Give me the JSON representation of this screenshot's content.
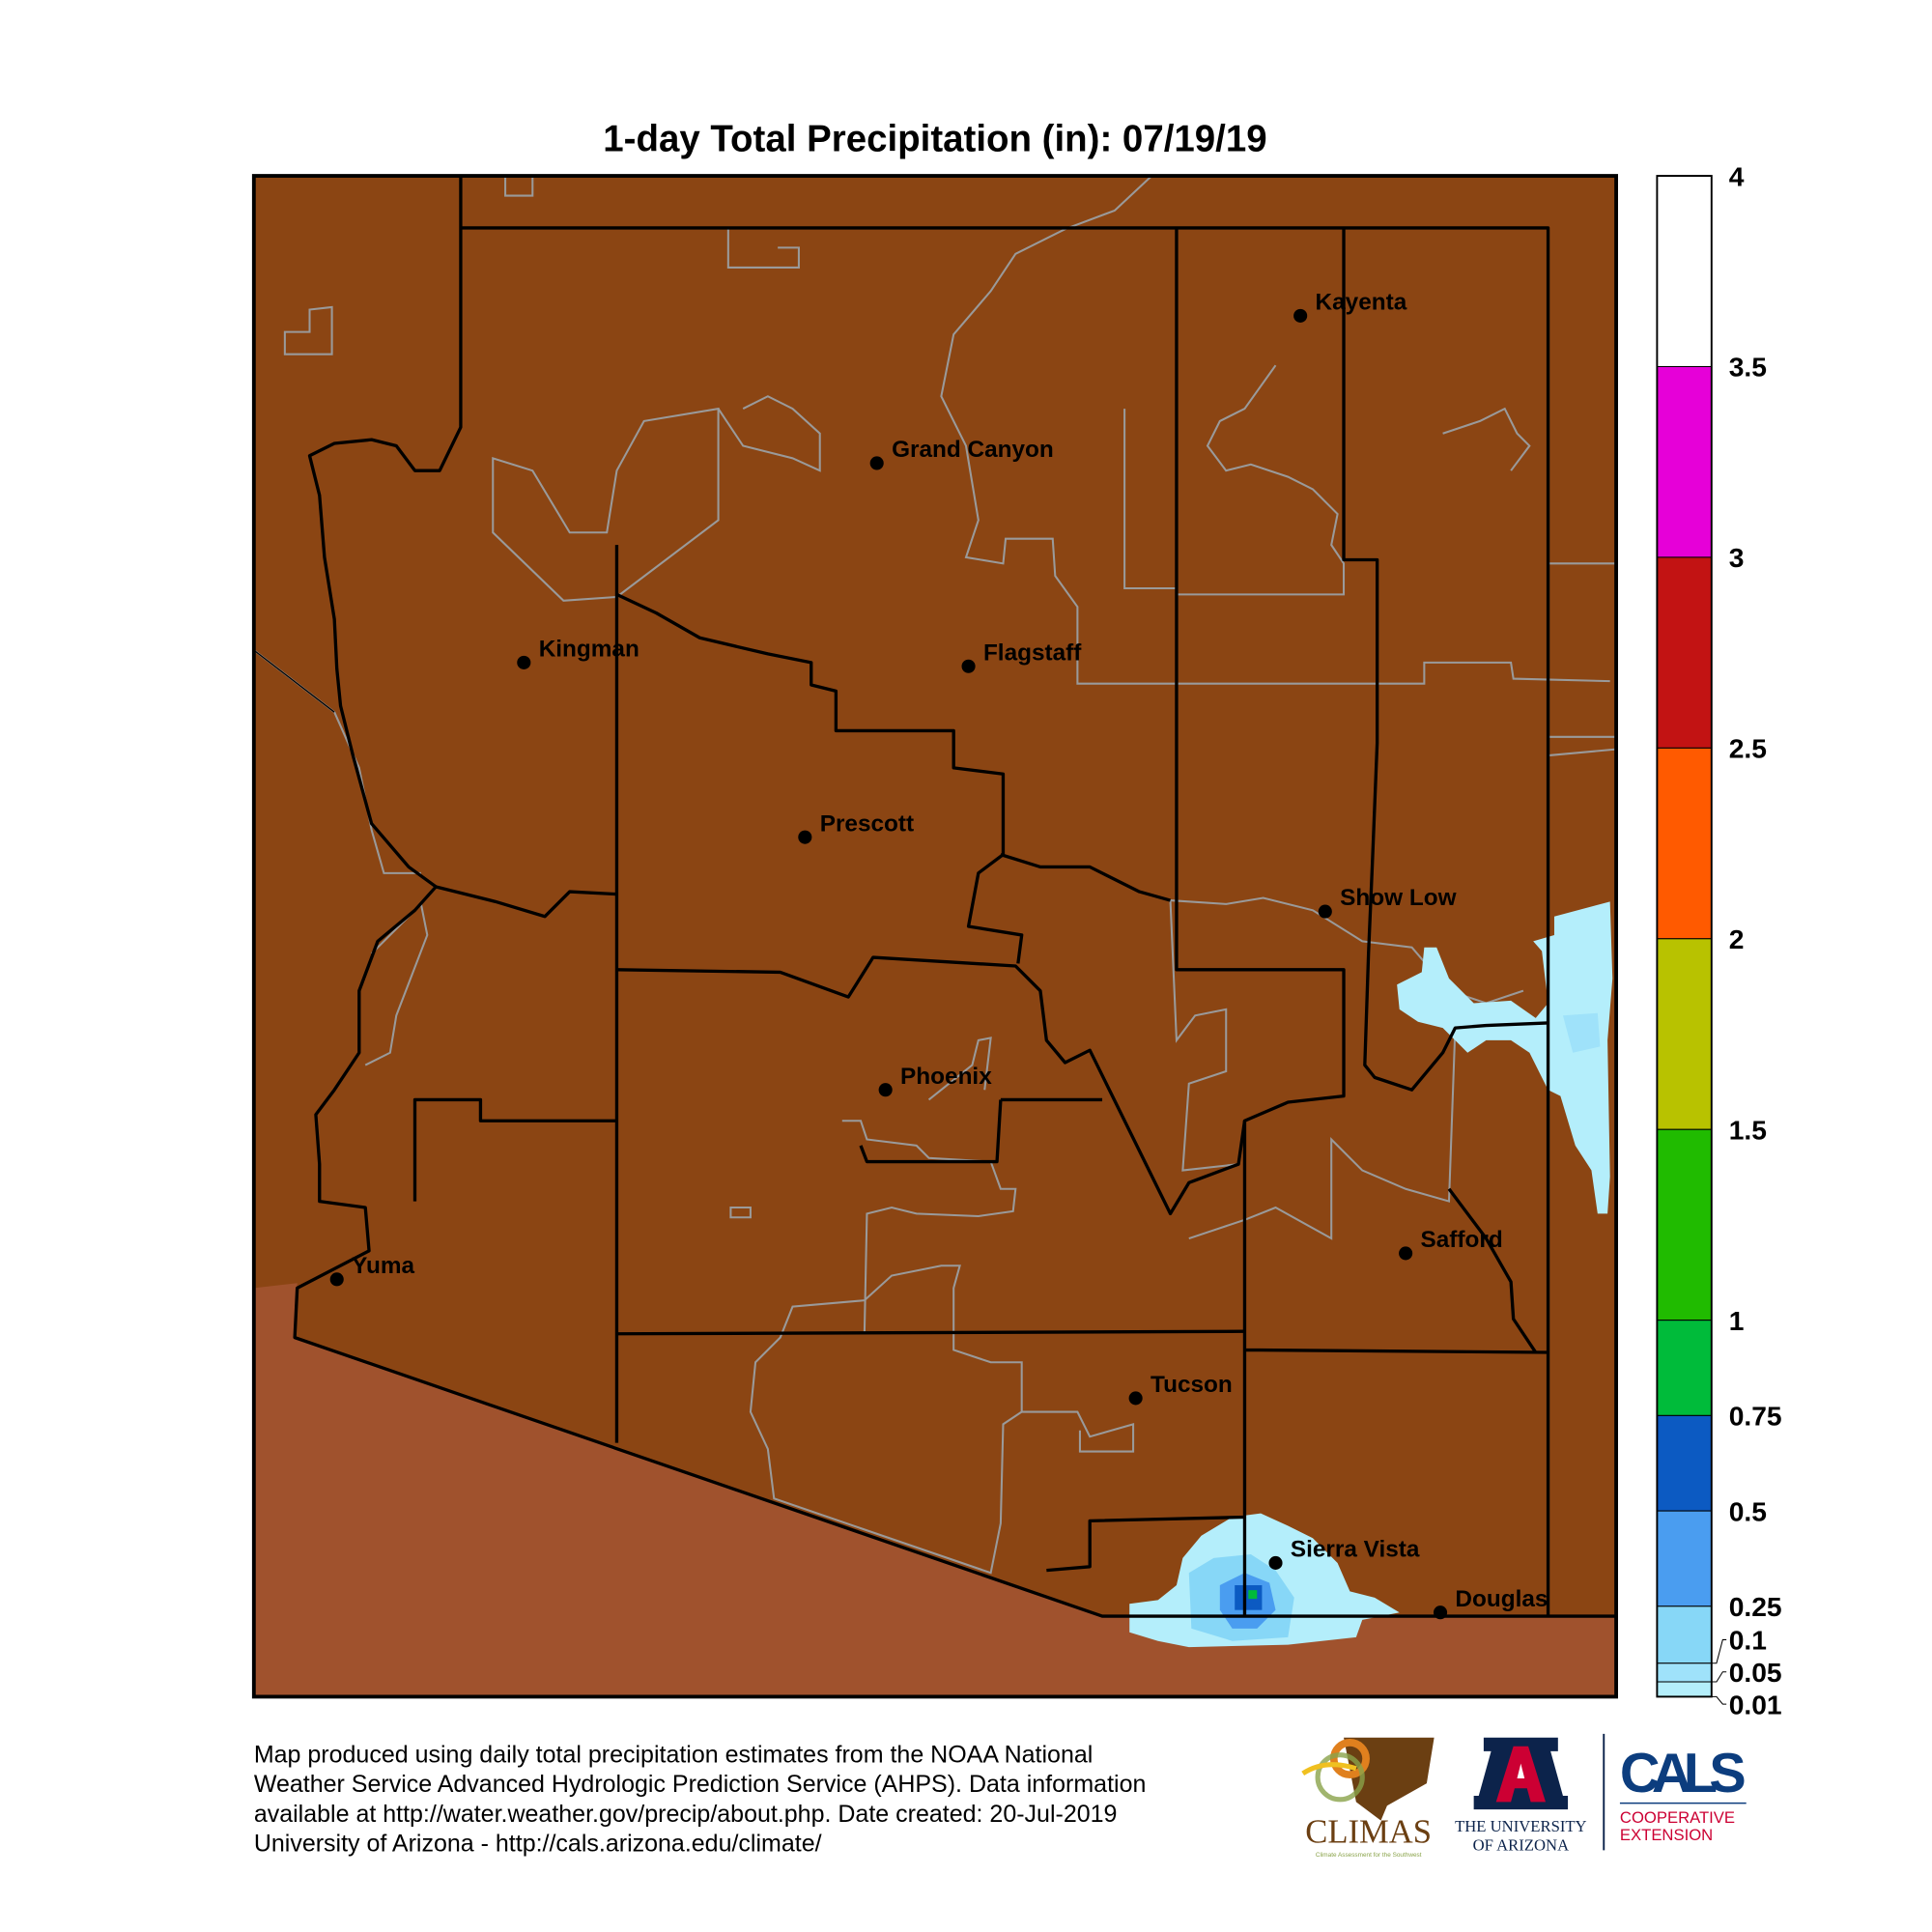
{
  "title": "1-day Total Precipitation (in): 07/19/19",
  "colors": {
    "land": "#8B4513",
    "mexico": "#A0522D",
    "county_line": "#000000",
    "reservation_line": "#9a9a9a"
  },
  "cities": [
    {
      "name": "Kayenta"
    },
    {
      "name": "Grand Canyon"
    },
    {
      "name": "Kingman"
    },
    {
      "name": "Flagstaff"
    },
    {
      "name": "Prescott"
    },
    {
      "name": "Show Low"
    },
    {
      "name": "Phoenix"
    },
    {
      "name": "Safford"
    },
    {
      "name": "Yuma"
    },
    {
      "name": "Tucson"
    },
    {
      "name": "Sierra Vista"
    },
    {
      "name": "Douglas"
    }
  ],
  "colorbar": {
    "ticks": [
      "4",
      "3.5",
      "3",
      "2.5",
      "2",
      "1.5",
      "1",
      "0.75",
      "0.5",
      "0.25",
      "0.1",
      "0.05",
      "0.01"
    ],
    "bins": [
      {
        "from": 3.5,
        "to": 4,
        "color": "#FFFFFF"
      },
      {
        "from": 3,
        "to": 3.5,
        "color": "#E600D8"
      },
      {
        "from": 2.5,
        "to": 3,
        "color": "#C21313"
      },
      {
        "from": 2,
        "to": 2.5,
        "color": "#FF5A00"
      },
      {
        "from": 1.5,
        "to": 2,
        "color": "#B8C200"
      },
      {
        "from": 1,
        "to": 1.5,
        "color": "#20BB00"
      },
      {
        "from": 0.75,
        "to": 1,
        "color": "#00BB3A"
      },
      {
        "from": 0.5,
        "to": 0.75,
        "color": "#0C5AC2"
      },
      {
        "from": 0.25,
        "to": 0.5,
        "color": "#4A9DF0"
      },
      {
        "from": 0.1,
        "to": 0.25,
        "color": "#87D7F7"
      },
      {
        "from": 0.05,
        "to": 0.1,
        "color": "#9FE2FA"
      },
      {
        "from": 0.01,
        "to": 0.05,
        "color": "#B4EEFB"
      }
    ]
  },
  "footer": {
    "lines": [
      "Map produced using daily total precipitation estimates from the NOAA National",
      "Weather Service Advanced Hydrologic Prediction Service (AHPS). Data information",
      "available at http://water.weather.gov/precip/about.php. Date created: 20-Jul-2019",
      "University of Arizona - http://cals.arizona.edu/climate/"
    ]
  },
  "logos": {
    "climas": "CLIMAS",
    "climas_sub": "Climate Assessment for the Southwest",
    "ua_line1": "THE UNIVERSITY",
    "ua_line2": "OF ARIZONA",
    "cals": "CALS",
    "cals_sub1": "COOPERATIVE",
    "cals_sub2": "EXTENSION"
  }
}
